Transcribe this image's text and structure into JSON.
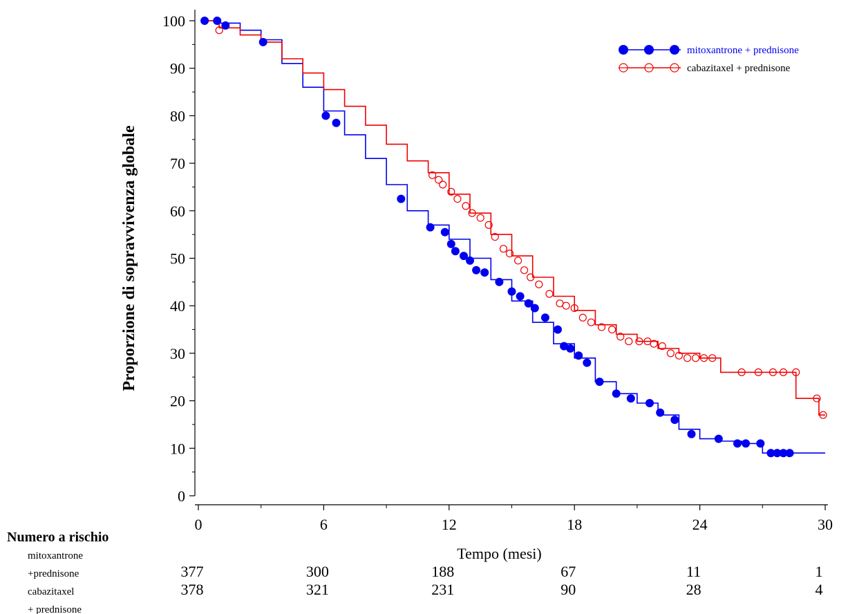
{
  "chart_data": {
    "type": "line",
    "ylabel": "Proporzione di sopravvivenza globale",
    "xlabel": "Tempo (mesi)",
    "xlim": [
      0,
      30
    ],
    "ylim": [
      0,
      100
    ],
    "x_ticks": [
      "0",
      "6",
      "12",
      "18",
      "24",
      "30"
    ],
    "y_ticks": [
      "0",
      "10",
      "20",
      "30",
      "40",
      "50",
      "60",
      "70",
      "80",
      "90",
      "100"
    ],
    "grid": false,
    "legend_position": "top-right",
    "series": [
      {
        "name": "mitoxantrone + prednisone",
        "color": "#0000ee",
        "marker": "filled-circle",
        "x": [
          0.3,
          1.0,
          2.0,
          3.0,
          4.0,
          5.0,
          6.0,
          7.0,
          8.0,
          9.0,
          10.0,
          11.0,
          12.0,
          13.0,
          14.0,
          15.0,
          16.0,
          17.0,
          18.0,
          19.0,
          20.0,
          21.0,
          22.0,
          23.0,
          24.0,
          25.0,
          26.0,
          27.0,
          28.0,
          30.0
        ],
        "y": [
          100,
          99.5,
          98,
          96,
          91,
          86,
          81,
          76,
          71,
          65.5,
          60,
          57,
          54,
          50,
          45.5,
          41,
          36.5,
          32,
          29,
          24,
          21.5,
          19.5,
          17,
          14,
          12,
          11.5,
          11,
          9,
          9,
          9
        ],
        "censor_x": [
          0.3,
          0.9,
          1.3,
          3.1,
          6.1,
          6.6,
          9.7,
          11.1,
          11.8,
          12.1,
          12.3,
          12.7,
          13.0,
          13.3,
          13.7,
          14.4,
          15.0,
          15.4,
          15.8,
          16.1,
          16.6,
          17.2,
          17.5,
          17.8,
          18.2,
          18.6,
          19.2,
          20.0,
          20.7,
          21.6,
          22.1,
          22.8,
          23.6,
          24.9,
          25.8,
          26.2,
          26.9,
          27.4,
          27.7,
          28.0,
          28.3
        ],
        "censor_y": [
          100,
          100,
          99,
          95.5,
          80,
          78.5,
          62.5,
          56.5,
          55.5,
          53,
          51.5,
          50.5,
          49.5,
          47.5,
          47,
          45,
          43,
          42,
          40.5,
          39.5,
          37.5,
          35,
          31.5,
          31,
          29.5,
          28,
          24,
          21.5,
          20.5,
          19.5,
          17.5,
          16,
          13,
          12,
          11,
          11,
          11,
          9,
          9,
          9,
          9
        ]
      },
      {
        "name": "cabazitaxel + prednisone",
        "color": "#ee0000",
        "marker": "open-circle",
        "x": [
          0.3,
          1.0,
          2.0,
          3.0,
          4.0,
          5.0,
          6.0,
          7.0,
          8.0,
          9.0,
          10.0,
          11.0,
          12.0,
          13.0,
          14.0,
          15.0,
          16.0,
          17.0,
          18.0,
          19.0,
          20.0,
          21.0,
          22.0,
          23.0,
          24.0,
          25.0,
          26.0,
          27.0,
          28.0,
          28.6,
          29.7,
          30.0
        ],
        "y": [
          100,
          98.5,
          97,
          95.5,
          92,
          89,
          85.5,
          82,
          78,
          74,
          70.5,
          68,
          63.5,
          59.5,
          55,
          50.5,
          46,
          42,
          39,
          36,
          34,
          32.5,
          31,
          30,
          29,
          26,
          26,
          26,
          26,
          20.5,
          17,
          17
        ],
        "censor_x": [
          1.0,
          11.2,
          11.5,
          11.7,
          12.1,
          12.4,
          12.8,
          13.1,
          13.5,
          13.9,
          14.2,
          14.6,
          14.9,
          15.3,
          15.6,
          15.9,
          16.3,
          16.8,
          17.3,
          17.6,
          18.0,
          18.4,
          18.8,
          19.3,
          19.8,
          20.2,
          20.6,
          21.1,
          21.5,
          21.8,
          22.2,
          22.6,
          23.0,
          23.4,
          23.8,
          24.2,
          24.6,
          26.0,
          26.8,
          27.5,
          28.0,
          28.6,
          29.6,
          29.9
        ],
        "censor_y": [
          98,
          67.5,
          66.5,
          65.5,
          64,
          62.5,
          61,
          59.5,
          58.5,
          57,
          54.5,
          52,
          51,
          49.5,
          47.5,
          46,
          44.5,
          42.5,
          40.5,
          40,
          39.5,
          37.5,
          36.5,
          35.5,
          35,
          33.5,
          32.5,
          32.5,
          32.5,
          32,
          31.5,
          30,
          29.5,
          29,
          29,
          29,
          29,
          26,
          26,
          26,
          26,
          26,
          20.5,
          17
        ]
      }
    ],
    "risk_table": {
      "title": "Numero a rischio",
      "rows": [
        {
          "label_lines": [
            "mitoxantrone",
            "+prednisone"
          ],
          "counts": [
            "377",
            "300",
            "188",
            "67",
            "11",
            "1"
          ]
        },
        {
          "label_lines": [
            "cabazitaxel",
            "+ prednisone"
          ],
          "counts": [
            "378",
            "321",
            "231",
            "90",
            "28",
            "4"
          ]
        }
      ]
    }
  }
}
